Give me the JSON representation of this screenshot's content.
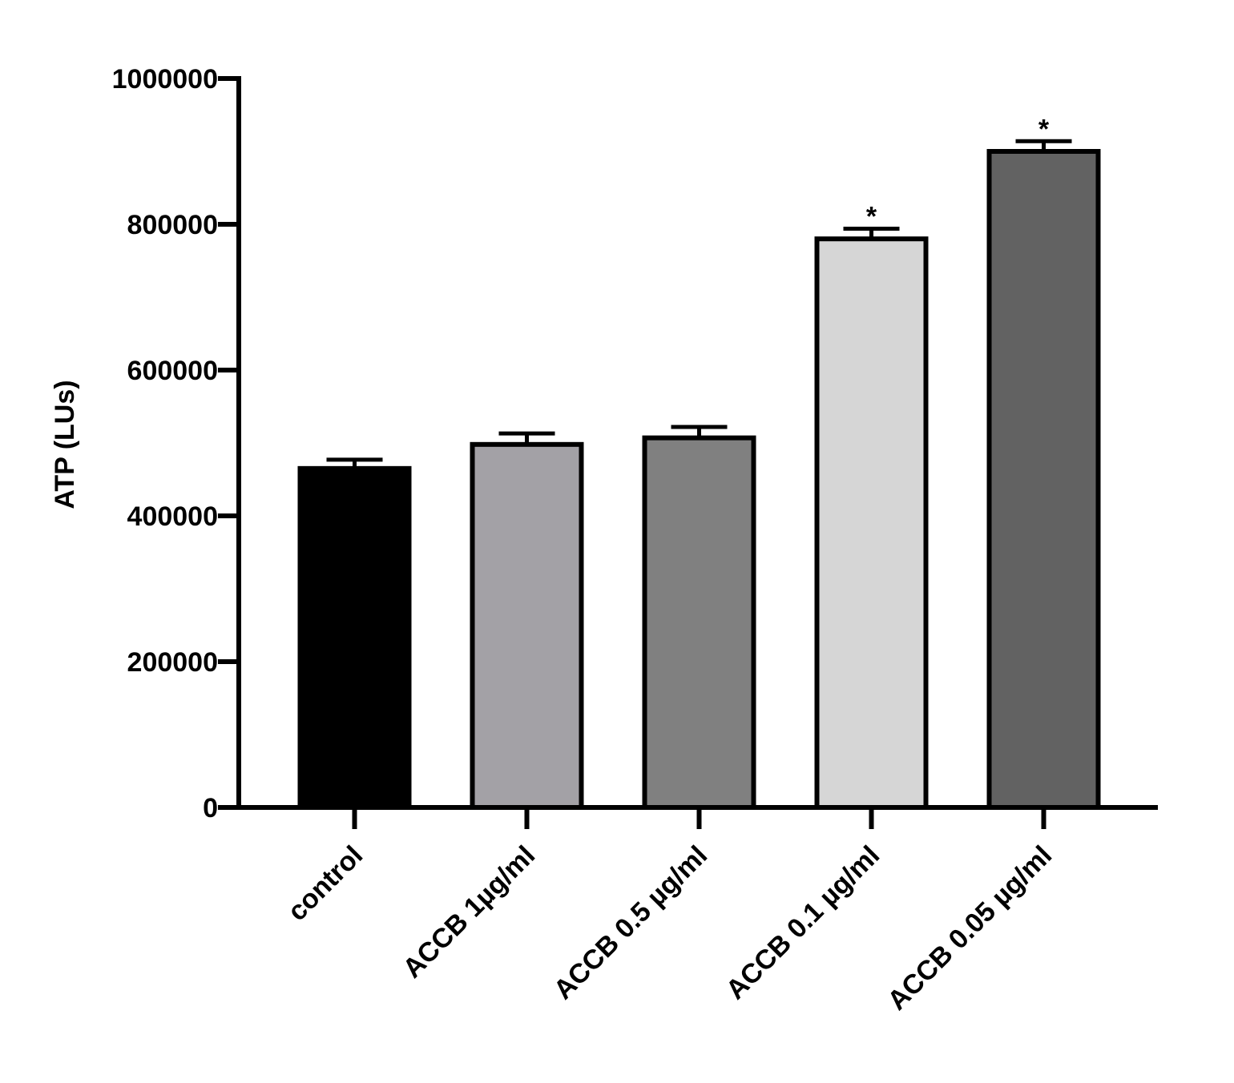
{
  "chart_data": {
    "type": "bar",
    "y_label": "ATP (LUs)",
    "categories": [
      "control",
      "ACCB 1µg/ml",
      "ACCB 0.5 µg/ml",
      "ACCB 0.1 µg/ml",
      "ACCB 0.05 µg/ml"
    ],
    "values": [
      465000,
      498000,
      507000,
      780000,
      900000
    ],
    "errors": [
      12000,
      15000,
      15000,
      14000,
      14000
    ],
    "colors": [
      "#000000",
      "#a3a1a6",
      "#808080",
      "#d6d6d6",
      "#626262"
    ],
    "annotations": [
      null,
      null,
      null,
      "*",
      "*"
    ],
    "ylim": [
      0,
      1000000
    ],
    "yticks": [
      0,
      200000,
      400000,
      600000,
      800000,
      1000000
    ],
    "grid": false
  }
}
